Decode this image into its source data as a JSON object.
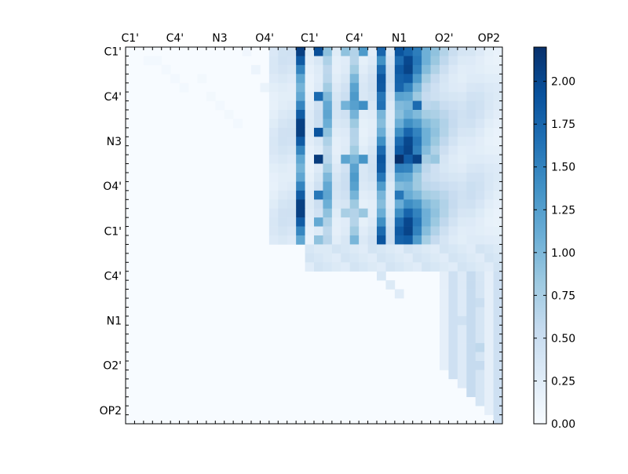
{
  "chart_data": {
    "type": "heatmap",
    "x_tick_labels": [
      "C1'",
      "C4'",
      "N3",
      "O4'",
      "C1'",
      "C4'",
      "N1",
      "O2'",
      "OP2"
    ],
    "y_tick_labels": [
      "C1'",
      "C4'",
      "N3",
      "O4'",
      "C1'",
      "C4'",
      "N1",
      "O2'",
      "OP2"
    ],
    "n_rows": 42,
    "n_cols": 42,
    "label_every": 5,
    "colorbar": {
      "min": 0.0,
      "max": 2.2,
      "ticks": [
        0.0,
        0.25,
        0.5,
        0.75,
        1.0,
        1.25,
        1.5,
        1.75,
        2.0
      ],
      "tick_labels": [
        "0.00",
        "0.25",
        "0.50",
        "0.75",
        "1.00",
        "1.25",
        "1.50",
        "1.75",
        "2.00"
      ]
    },
    "colormap": [
      "#f7fbff",
      "#deebf7",
      "#c6dbef",
      "#9ecae1",
      "#6baed6",
      "#4292c6",
      "#2171b5",
      "#08519c",
      "#08306b"
    ],
    "upper_triangle_only": true,
    "approx_values_note": "values estimated from colour",
    "col_profile_nucleotide_block": [
      0.35,
      0.45,
      0.45,
      2.1,
      0.3,
      0.5,
      1.2,
      0.4,
      0.5,
      1.3,
      0.35,
      0.45,
      1.9,
      0.5,
      1.85,
      2.05,
      1.6,
      1.1,
      0.9,
      0.7,
      0.55,
      0.45,
      0.5,
      0.45,
      0.35,
      0.3
    ],
    "cells": [
      [
        1,
        2,
        0.05
      ],
      [
        1,
        3,
        0.05
      ],
      [
        2,
        4,
        0.05
      ],
      [
        3,
        5,
        0.05
      ],
      [
        4,
        6,
        0.05
      ],
      [
        3,
        8,
        0.06
      ],
      [
        5,
        9,
        0.06
      ],
      [
        6,
        10,
        0.05
      ],
      [
        7,
        11,
        0.06
      ],
      [
        8,
        12,
        0.05
      ],
      [
        0,
        13,
        0.08
      ],
      [
        2,
        14,
        0.12
      ],
      [
        4,
        15,
        0.14
      ],
      [
        6,
        16,
        0.15
      ],
      [
        9,
        17,
        0.18
      ],
      [
        11,
        18,
        0.22
      ],
      [
        13,
        19,
        0.25
      ],
      [
        0,
        21,
        1.95
      ],
      [
        5,
        21,
        1.7
      ],
      [
        9,
        21,
        1.9
      ],
      [
        12,
        21,
        2.1
      ],
      [
        16,
        21,
        1.6
      ],
      [
        19,
        21,
        1.15
      ],
      [
        21,
        21,
        0.9
      ],
      [
        0,
        24,
        0.9
      ],
      [
        6,
        24,
        1.05
      ],
      [
        12,
        24,
        1.2
      ],
      [
        18,
        24,
        0.75
      ],
      [
        0,
        26,
        1.3
      ],
      [
        6,
        26,
        1.4
      ],
      [
        12,
        26,
        1.35
      ],
      [
        18,
        26,
        0.85
      ],
      [
        0,
        28,
        1.75
      ],
      [
        6,
        28,
        1.65
      ],
      [
        12,
        28,
        1.8
      ],
      [
        18,
        28,
        1.1
      ],
      [
        0,
        30,
        1.9
      ],
      [
        4,
        30,
        1.75
      ],
      [
        12,
        30,
        2.2
      ],
      [
        16,
        30,
        1.6
      ],
      [
        20,
        30,
        0.7
      ],
      [
        0,
        32,
        1.55
      ],
      [
        6,
        32,
        1.7
      ],
      [
        12,
        32,
        2.05
      ],
      [
        17,
        32,
        1.3
      ],
      [
        21,
        32,
        0.55
      ],
      [
        0,
        34,
        0.8
      ],
      [
        6,
        34,
        0.65
      ],
      [
        12,
        34,
        0.85
      ],
      [
        18,
        34,
        0.45
      ],
      [
        22,
        22,
        0.3
      ],
      [
        22,
        23,
        0.3
      ],
      [
        23,
        25,
        0.25
      ],
      [
        24,
        27,
        0.3
      ],
      [
        25,
        28,
        0.35
      ],
      [
        26,
        29,
        0.3
      ],
      [
        27,
        30,
        0.25
      ],
      [
        22,
        36,
        0.3
      ],
      [
        24,
        37,
        0.4
      ],
      [
        26,
        38,
        0.45
      ],
      [
        28,
        39,
        0.5
      ],
      [
        30,
        37,
        0.45
      ],
      [
        32,
        38,
        0.55
      ],
      [
        33,
        39,
        0.6
      ],
      [
        34,
        38,
        0.55
      ],
      [
        35,
        39,
        0.55
      ],
      [
        36,
        38,
        0.4
      ],
      [
        37,
        39,
        0.35
      ],
      [
        38,
        38,
        0.3
      ],
      [
        39,
        40,
        0.2
      ]
    ]
  }
}
